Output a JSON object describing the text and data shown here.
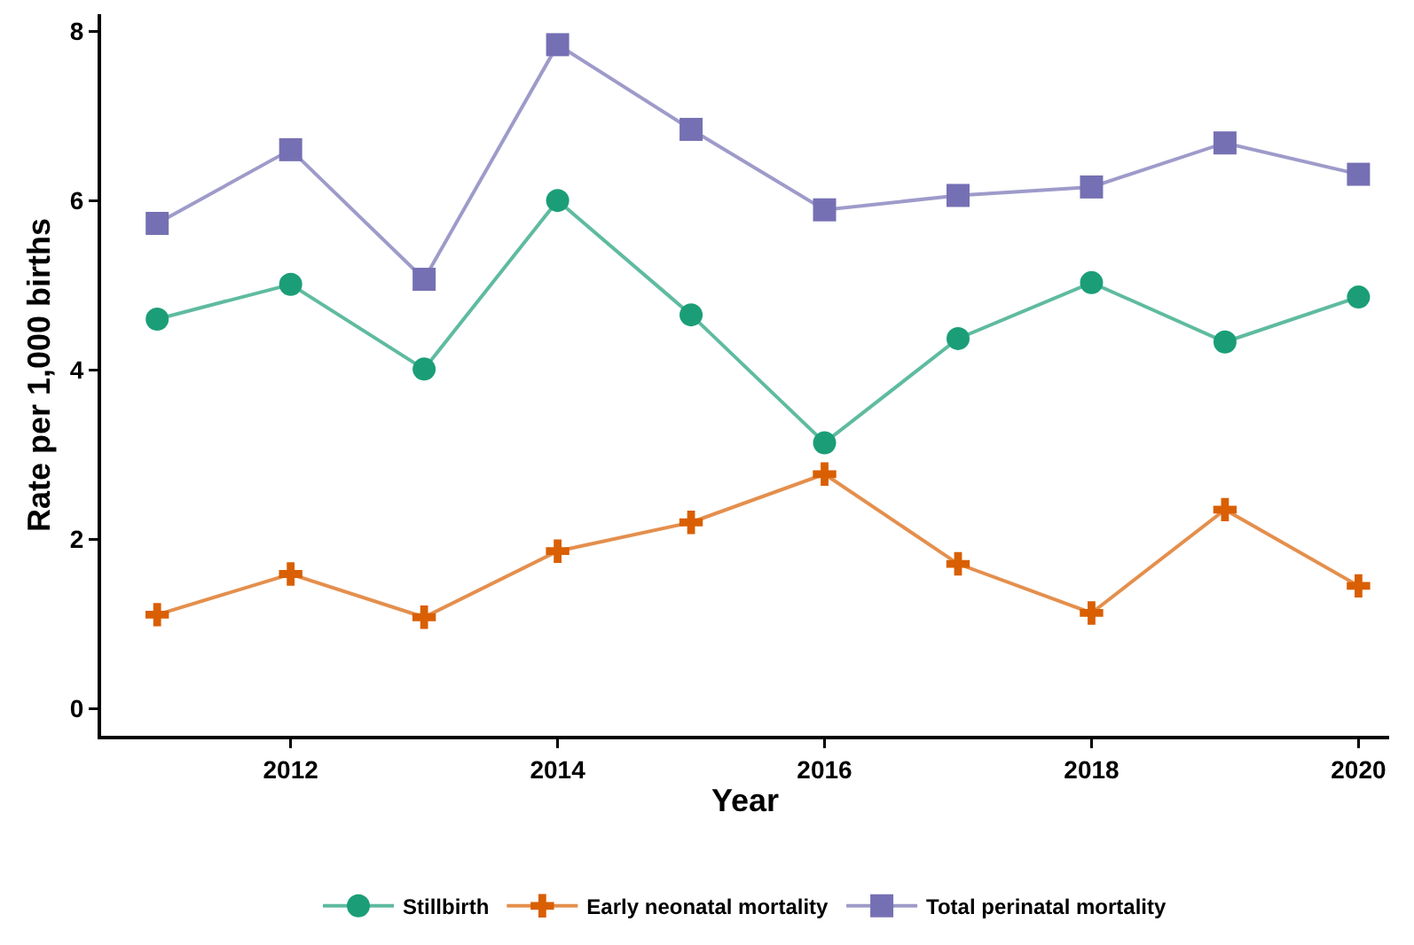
{
  "chart_data": {
    "type": "line",
    "xlabel": "Year",
    "ylabel": "Rate per 1,000 births",
    "x": [
      2011,
      2012,
      2013,
      2014,
      2015,
      2016,
      2017,
      2018,
      2019,
      2020
    ],
    "series": [
      {
        "name": "Stillbirth",
        "color": "#1b9e77",
        "marker": "circle",
        "values": [
          4.6,
          5.01,
          4.01,
          6.0,
          4.65,
          3.14,
          4.37,
          5.03,
          4.33,
          4.86
        ]
      },
      {
        "name": "Early neonatal mortality",
        "color": "#d95f02",
        "marker": "cross",
        "values": [
          1.11,
          1.59,
          1.08,
          1.86,
          2.2,
          2.77,
          1.71,
          1.13,
          2.35,
          1.45
        ]
      },
      {
        "name": "Total perinatal mortality",
        "color": "#7570b3",
        "marker": "square",
        "values": [
          5.73,
          6.6,
          5.07,
          7.84,
          6.84,
          5.89,
          6.06,
          6.16,
          6.68,
          6.31
        ]
      }
    ],
    "xlim": [
      2010.58,
      2020.23
    ],
    "xticks": [
      2012,
      2014,
      2016,
      2018,
      2020
    ],
    "ylim": [
      -0.32,
      8.2
    ],
    "yticks": [
      0,
      2,
      4,
      6,
      8
    ],
    "grid": false,
    "legend": "bottom",
    "line_style": "solid"
  }
}
